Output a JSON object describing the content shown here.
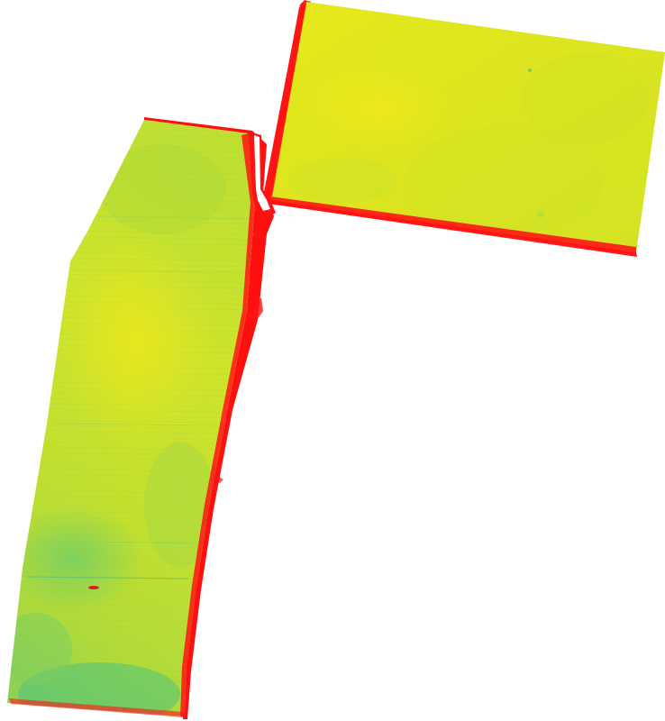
{
  "map": {
    "background_color": "#ffffff",
    "fields": [
      {
        "id": "field-north-east",
        "description_shown": "",
        "fill_primary": "#d9e41e",
        "fill_secondary": "#e4e81c"
      },
      {
        "id": "field-south-west",
        "description_shown": "",
        "fill_primary": "#b8dc34",
        "fill_secondary": "#cde428"
      }
    ],
    "palette": {
      "high": "#f0e81a",
      "mid_high": "#d4e320",
      "mid": "#a7d83c",
      "low": "#6ccc6a",
      "very_low": "#39bc8c",
      "edge_stress": "#ff0000"
    }
  }
}
